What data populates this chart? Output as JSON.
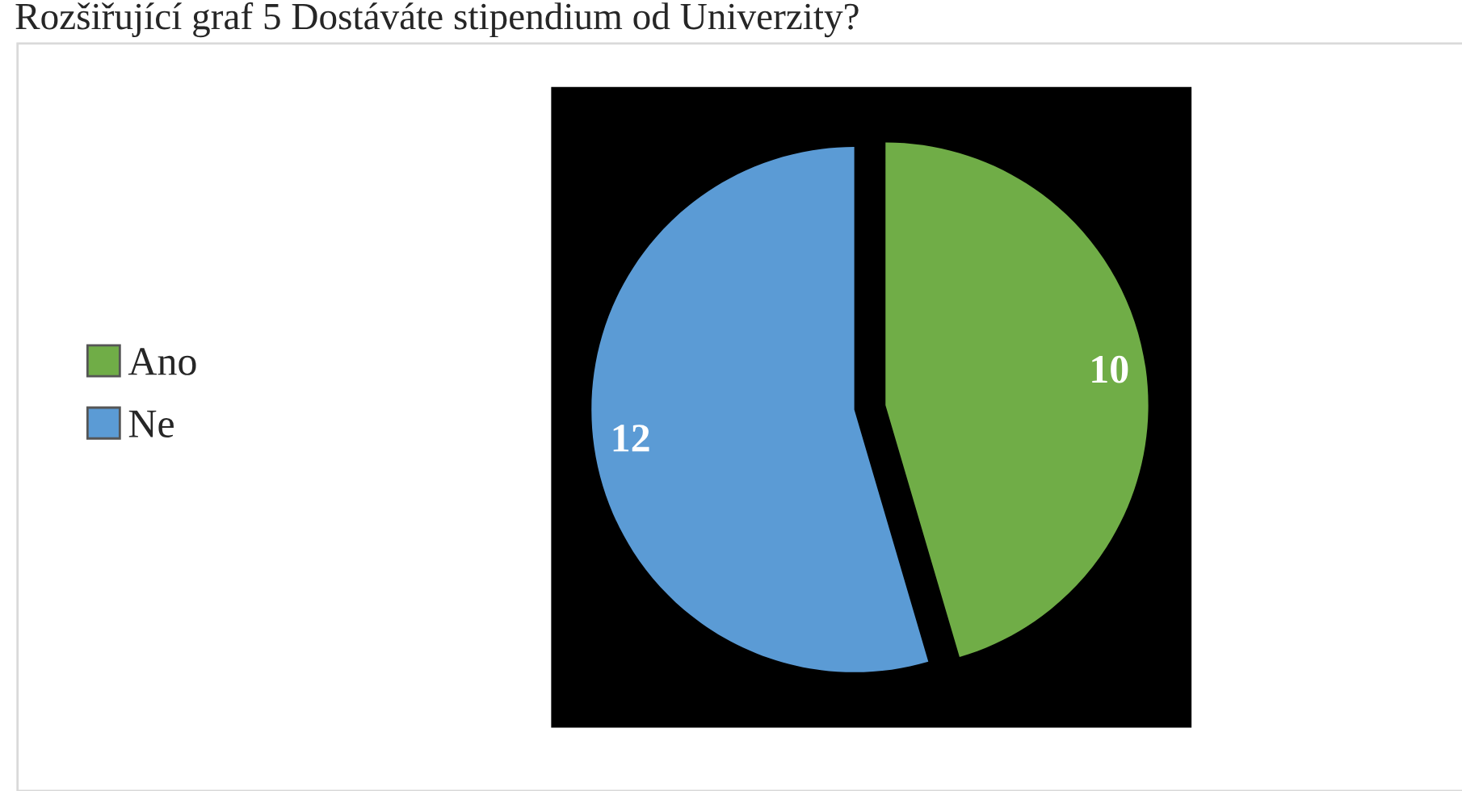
{
  "chart_data": {
    "type": "pie",
    "title": "Rozšiřující graf 5 Dostáváte stipendium od Univerzity?",
    "categories": [
      "Ano",
      "Ne"
    ],
    "values": [
      10,
      12
    ],
    "colors": [
      "#70ad47",
      "#5b9bd5"
    ],
    "data_labels": true,
    "legend": "left"
  }
}
